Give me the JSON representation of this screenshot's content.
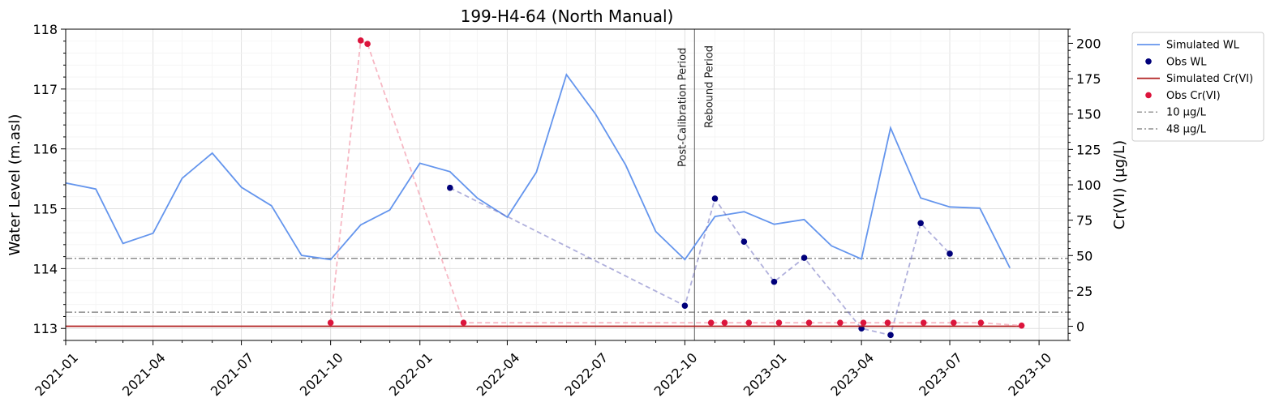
{
  "chart_data": {
    "type": "line",
    "title": "199-H4-64 (North Manual)",
    "xlabel": "",
    "ylabel": "Water Level (m.asl)",
    "y2label": "Cr(VI) (μg/L)",
    "xlim": [
      "2021-01-01",
      "2023-10-31"
    ],
    "ylim": [
      112.8,
      118
    ],
    "y2lim": [
      -10,
      210
    ],
    "x_ticks": [
      "2021-01",
      "2021-04",
      "2021-07",
      "2021-10",
      "2022-01",
      "2022-04",
      "2022-07",
      "2022-10",
      "2023-01",
      "2023-04",
      "2023-07",
      "2023-10"
    ],
    "y_ticks": [
      113,
      114,
      115,
      116,
      117,
      118
    ],
    "y2_ticks": [
      0,
      25,
      50,
      75,
      100,
      125,
      150,
      175,
      200
    ],
    "grid": true,
    "legend_position": "outside-right",
    "annotations": [
      {
        "text": "Post-Calibration Period",
        "x": "2022-10-11"
      },
      {
        "text": "Rebound Period",
        "x": "2022-10-11"
      }
    ],
    "series": [
      {
        "name": "Simulated WL",
        "style": "line",
        "axis": "left",
        "color": "#6495ed",
        "x": [
          "2021-01-01",
          "2021-02-01",
          "2021-03-01",
          "2021-04-01",
          "2021-05-01",
          "2021-06-01",
          "2021-07-01",
          "2021-08-01",
          "2021-09-01",
          "2021-10-01",
          "2021-11-01",
          "2021-12-01",
          "2022-01-01",
          "2022-02-01",
          "2022-03-01",
          "2022-04-01",
          "2022-05-01",
          "2022-06-01",
          "2022-07-01",
          "2022-08-01",
          "2022-09-01",
          "2022-10-01",
          "2022-11-01",
          "2022-12-01",
          "2023-01-01",
          "2023-02-01",
          "2023-03-01",
          "2023-04-01",
          "2023-05-01",
          "2023-06-01",
          "2023-07-01",
          "2023-08-01",
          "2023-09-01"
        ],
        "y": [
          115.43,
          115.33,
          114.42,
          114.59,
          115.51,
          115.93,
          115.36,
          115.05,
          114.22,
          114.15,
          114.73,
          114.98,
          115.76,
          115.62,
          115.18,
          114.86,
          115.61,
          117.24,
          116.58,
          115.73,
          114.62,
          114.15,
          114.87,
          114.95,
          114.74,
          114.82,
          114.38,
          114.16,
          116.35,
          115.18,
          115.03,
          115.01,
          114.01
        ]
      },
      {
        "name": "Obs WL",
        "style": "markers+dashed",
        "axis": "left",
        "color": "#00007a",
        "x": [
          "2022-02-01",
          "2022-10-01",
          "2022-11-01",
          "2022-12-01",
          "2023-01-01",
          "2023-02-01",
          "2023-04-01",
          "2023-05-01",
          "2023-06-01",
          "2023-07-01"
        ],
        "y": [
          115.35,
          113.38,
          115.17,
          114.45,
          113.78,
          114.18,
          113.0,
          112.89,
          114.76,
          114.25
        ]
      },
      {
        "name": "Simulated Cr(VI)",
        "style": "line",
        "axis": "right",
        "color": "#b22222",
        "x": [
          "2021-01-01",
          "2023-09-15"
        ],
        "y": [
          0,
          0
        ]
      },
      {
        "name": "Obs Cr(VI)",
        "style": "markers+dashed",
        "axis": "right",
        "color": "#dc143c",
        "x": [
          "2021-10-01",
          "2021-11-01",
          "2021-11-08",
          "2022-02-15",
          "2022-10-28",
          "2022-11-11",
          "2022-12-06",
          "2023-01-06",
          "2023-02-06",
          "2023-03-10",
          "2023-04-03",
          "2023-04-28",
          "2023-06-04",
          "2023-07-05",
          "2023-08-02",
          "2023-09-13"
        ],
        "y": [
          2.5,
          202,
          199.6,
          2.5,
          2.5,
          2.5,
          2.5,
          2.5,
          2.5,
          2.5,
          2.5,
          2.5,
          2.5,
          2.5,
          2.5,
          0.5
        ]
      }
    ],
    "reference_lines": [
      {
        "name": "10 μg/L",
        "value": 10,
        "axis": "right",
        "color": "#777777"
      },
      {
        "name": "48 μg/L",
        "value": 48,
        "axis": "right",
        "color": "#777777"
      }
    ],
    "vertical_lines": [
      {
        "x": "2022-10-11",
        "color": "#777777"
      }
    ]
  }
}
